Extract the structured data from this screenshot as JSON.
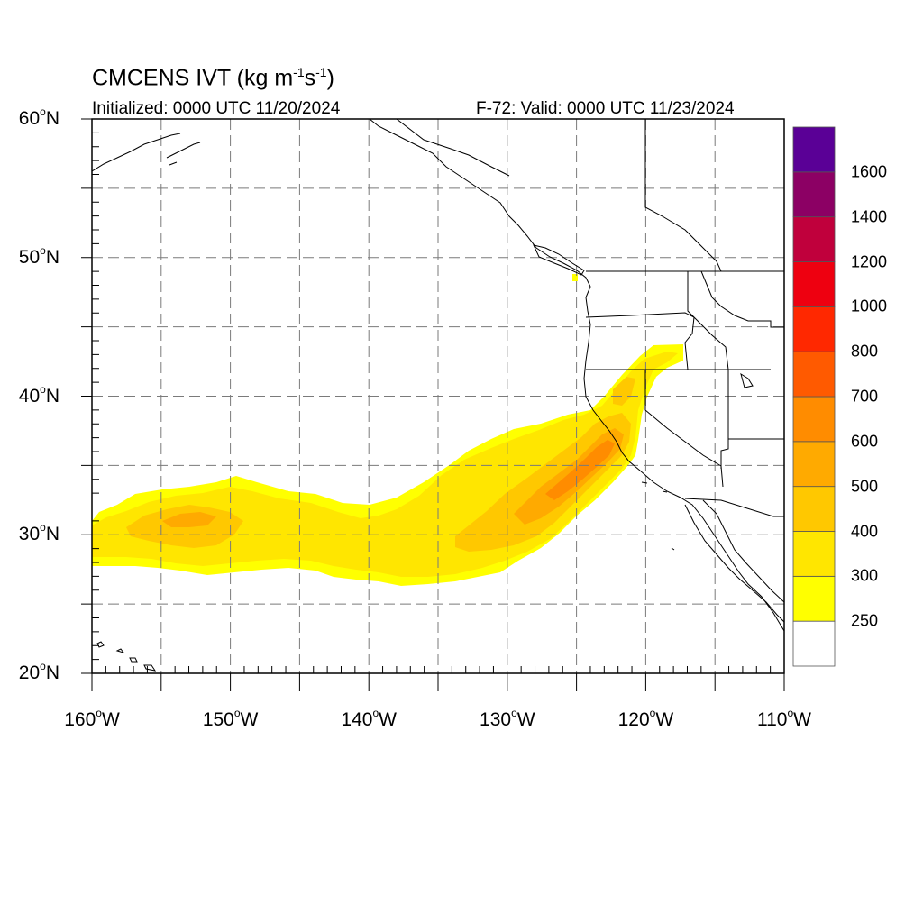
{
  "title": {
    "main": "CMCENS IVT (kg m",
    "units_exp1": "-1",
    "units_mid": "s",
    "units_exp2": "-1",
    "units_close": ")",
    "initialized": "Initialized: 0000 UTC 11/20/2024",
    "valid": "F-72: Valid: 0000 UTC 11/23/2024"
  },
  "axes": {
    "lat_labels": [
      {
        "text": "60",
        "suffix": "N",
        "value": 60
      },
      {
        "text": "50",
        "suffix": "N",
        "value": 50
      },
      {
        "text": "40",
        "suffix": "N",
        "value": 40
      },
      {
        "text": "30",
        "suffix": "N",
        "value": 30
      },
      {
        "text": "20",
        "suffix": "N",
        "value": 20
      }
    ],
    "lon_labels": [
      {
        "text": "160",
        "suffix": "W",
        "value": -160
      },
      {
        "text": "150",
        "suffix": "W",
        "value": -150
      },
      {
        "text": "140",
        "suffix": "W",
        "value": -140
      },
      {
        "text": "130",
        "suffix": "W",
        "value": -130
      },
      {
        "text": "120",
        "suffix": "W",
        "value": -120
      },
      {
        "text": "110",
        "suffix": "W",
        "value": -110
      }
    ],
    "lat_range": [
      20,
      60
    ],
    "lon_range": [
      -160,
      -110
    ],
    "grid": "dashed every 5 degrees"
  },
  "colorbar": {
    "labels": [
      "250",
      "300",
      "400",
      "500",
      "600",
      "700",
      "800",
      "1000",
      "1200",
      "1400",
      "1600"
    ],
    "bins": [
      {
        "color": "#ffffff"
      },
      {
        "color": "#ffff00"
      },
      {
        "color": "#ffe600"
      },
      {
        "color": "#ffc800"
      },
      {
        "color": "#ffaa00"
      },
      {
        "color": "#ff8c00"
      },
      {
        "color": "#ff5a00"
      },
      {
        "color": "#ff2800"
      },
      {
        "color": "#ee0010"
      },
      {
        "color": "#c0003c"
      },
      {
        "color": "#8c0064"
      },
      {
        "color": "#5a0096"
      }
    ]
  },
  "ivt_field": {
    "description_values_kg_m1_s1": "atmospheric river plume extending from ~160W 30N to northern California/Oregon",
    "plume_core_max_bin": "600-700",
    "landfall_region": "central California coast near 37N 122W"
  }
}
